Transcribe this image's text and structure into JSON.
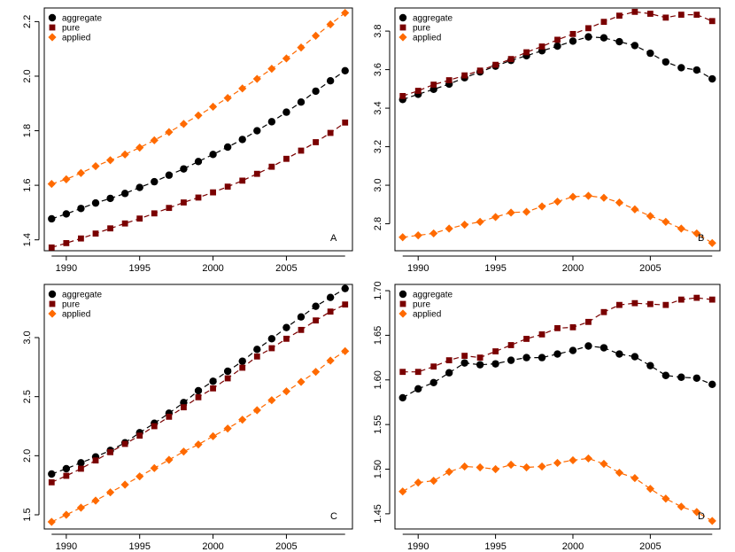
{
  "colors": {
    "aggregate": "#000000",
    "pure": "#7a0000",
    "applied": "#ff6a00"
  },
  "chart_data": [
    {
      "type": "line",
      "panel_label": "A",
      "legend_position": "top-left",
      "x": [
        1989,
        1990,
        1991,
        1992,
        1993,
        1994,
        1995,
        1996,
        1997,
        1998,
        1999,
        2000,
        2001,
        2002,
        2003,
        2004,
        2005,
        2006,
        2007,
        2008,
        2009
      ],
      "xticks": [
        1990,
        1995,
        2000,
        2005
      ],
      "xlim": [
        1988.5,
        2009.5
      ],
      "ylim": [
        1.36,
        2.25
      ],
      "yticks": [
        1.4,
        1.6,
        1.8,
        2.0,
        2.2
      ],
      "ytick_labels": [
        "1.4",
        "1.6",
        "1.8",
        "2.0",
        "2.2"
      ],
      "series": [
        {
          "name": "aggregate",
          "marker": "circle",
          "values": [
            1.477,
            1.495,
            1.515,
            1.535,
            1.552,
            1.57,
            1.592,
            1.613,
            1.637,
            1.66,
            1.687,
            1.713,
            1.74,
            1.768,
            1.8,
            1.833,
            1.868,
            1.905,
            1.945,
            1.983,
            2.02
          ]
        },
        {
          "name": "pure",
          "marker": "square",
          "values": [
            1.372,
            1.388,
            1.405,
            1.423,
            1.442,
            1.46,
            1.478,
            1.497,
            1.517,
            1.537,
            1.555,
            1.574,
            1.595,
            1.617,
            1.642,
            1.668,
            1.697,
            1.727,
            1.758,
            1.792,
            1.83
          ]
        },
        {
          "name": "applied",
          "marker": "diamond",
          "values": [
            1.605,
            1.622,
            1.645,
            1.67,
            1.692,
            1.713,
            1.738,
            1.765,
            1.795,
            1.825,
            1.856,
            1.888,
            1.92,
            1.955,
            1.99,
            2.027,
            2.065,
            2.105,
            2.148,
            2.19,
            2.232
          ]
        }
      ]
    },
    {
      "type": "line",
      "panel_label": "B",
      "legend_position": "top-left",
      "x": [
        1989,
        1990,
        1991,
        1992,
        1993,
        1994,
        1995,
        1996,
        1997,
        1998,
        1999,
        2000,
        2001,
        2002,
        2003,
        2004,
        2005,
        2006,
        2007,
        2008,
        2009
      ],
      "xticks": [
        1990,
        1995,
        2000,
        2005
      ],
      "xlim": [
        1988.5,
        2009.5
      ],
      "ylim": [
        2.66,
        3.92
      ],
      "yticks": [
        2.8,
        3.0,
        3.2,
        3.4,
        3.6,
        3.8
      ],
      "ytick_labels": [
        "2.8",
        "3.0",
        "3.2",
        "3.4",
        "3.6",
        "3.8"
      ],
      "series": [
        {
          "name": "aggregate",
          "marker": "circle",
          "values": [
            3.445,
            3.472,
            3.498,
            3.525,
            3.558,
            3.588,
            3.618,
            3.648,
            3.672,
            3.698,
            3.722,
            3.748,
            3.77,
            3.765,
            3.745,
            3.725,
            3.685,
            3.64,
            3.61,
            3.598,
            3.552
          ]
        },
        {
          "name": "pure",
          "marker": "square",
          "values": [
            3.463,
            3.49,
            3.522,
            3.545,
            3.57,
            3.595,
            3.625,
            3.655,
            3.69,
            3.72,
            3.755,
            3.785,
            3.815,
            3.848,
            3.88,
            3.9,
            3.89,
            3.87,
            3.885,
            3.885,
            3.852
          ]
        },
        {
          "name": "applied",
          "marker": "diamond",
          "values": [
            2.73,
            2.74,
            2.75,
            2.775,
            2.795,
            2.81,
            2.835,
            2.858,
            2.862,
            2.89,
            2.915,
            2.94,
            2.945,
            2.935,
            2.91,
            2.875,
            2.84,
            2.81,
            2.775,
            2.75,
            2.7
          ]
        }
      ]
    },
    {
      "type": "line",
      "panel_label": "C",
      "legend_position": "top-left",
      "x": [
        1989,
        1990,
        1991,
        1992,
        1993,
        1994,
        1995,
        1996,
        1997,
        1998,
        1999,
        2000,
        2001,
        2002,
        2003,
        2004,
        2005,
        2006,
        2007,
        2008,
        2009
      ],
      "xticks": [
        1990,
        1995,
        2000,
        2005
      ],
      "xlim": [
        1988.5,
        2009.5
      ],
      "ylim": [
        1.38,
        3.45
      ],
      "yticks": [
        1.5,
        2.0,
        2.5,
        3.0
      ],
      "ytick_labels": [
        "1.5",
        "2.0",
        "2.5",
        "3.0"
      ],
      "series": [
        {
          "name": "aggregate",
          "marker": "circle",
          "values": [
            1.845,
            1.89,
            1.94,
            1.99,
            2.045,
            2.11,
            2.195,
            2.275,
            2.36,
            2.45,
            2.55,
            2.63,
            2.715,
            2.8,
            2.9,
            2.99,
            3.085,
            3.175,
            3.265,
            3.34,
            3.415
          ]
        },
        {
          "name": "pure",
          "marker": "square",
          "values": [
            1.775,
            1.83,
            1.89,
            1.96,
            2.03,
            2.1,
            2.17,
            2.25,
            2.33,
            2.41,
            2.495,
            2.57,
            2.655,
            2.745,
            2.84,
            2.91,
            2.99,
            3.065,
            3.145,
            3.22,
            3.28
          ]
        },
        {
          "name": "applied",
          "marker": "diamond",
          "values": [
            1.44,
            1.5,
            1.56,
            1.62,
            1.69,
            1.755,
            1.825,
            1.895,
            1.965,
            2.035,
            2.095,
            2.165,
            2.23,
            2.305,
            2.385,
            2.47,
            2.545,
            2.625,
            2.71,
            2.805,
            2.885
          ]
        }
      ]
    },
    {
      "type": "line",
      "panel_label": "D",
      "legend_position": "top-left",
      "x": [
        1989,
        1990,
        1991,
        1992,
        1993,
        1994,
        1995,
        1996,
        1997,
        1998,
        1999,
        2000,
        2001,
        2002,
        2003,
        2004,
        2005,
        2006,
        2007,
        2008,
        2009
      ],
      "xticks": [
        1990,
        1995,
        2000,
        2005
      ],
      "xlim": [
        1988.5,
        2009.5
      ],
      "ylim": [
        1.433,
        1.707
      ],
      "yticks": [
        1.45,
        1.5,
        1.55,
        1.6,
        1.65,
        1.7
      ],
      "ytick_labels": [
        "1.45",
        "1.50",
        "1.55",
        "1.60",
        "1.65",
        "1.70"
      ],
      "series": [
        {
          "name": "aggregate",
          "marker": "circle",
          "values": [
            1.58,
            1.59,
            1.597,
            1.608,
            1.619,
            1.617,
            1.618,
            1.622,
            1.625,
            1.625,
            1.629,
            1.633,
            1.638,
            1.636,
            1.629,
            1.626,
            1.616,
            1.605,
            1.603,
            1.602,
            1.595
          ]
        },
        {
          "name": "pure",
          "marker": "square",
          "values": [
            1.609,
            1.609,
            1.615,
            1.622,
            1.627,
            1.625,
            1.632,
            1.639,
            1.646,
            1.651,
            1.658,
            1.659,
            1.665,
            1.676,
            1.684,
            1.686,
            1.685,
            1.684,
            1.69,
            1.692,
            1.69
          ]
        },
        {
          "name": "applied",
          "marker": "diamond",
          "values": [
            1.475,
            1.485,
            1.487,
            1.497,
            1.503,
            1.502,
            1.5,
            1.505,
            1.502,
            1.503,
            1.507,
            1.51,
            1.512,
            1.506,
            1.496,
            1.49,
            1.478,
            1.467,
            1.458,
            1.452,
            1.442
          ]
        }
      ]
    }
  ]
}
